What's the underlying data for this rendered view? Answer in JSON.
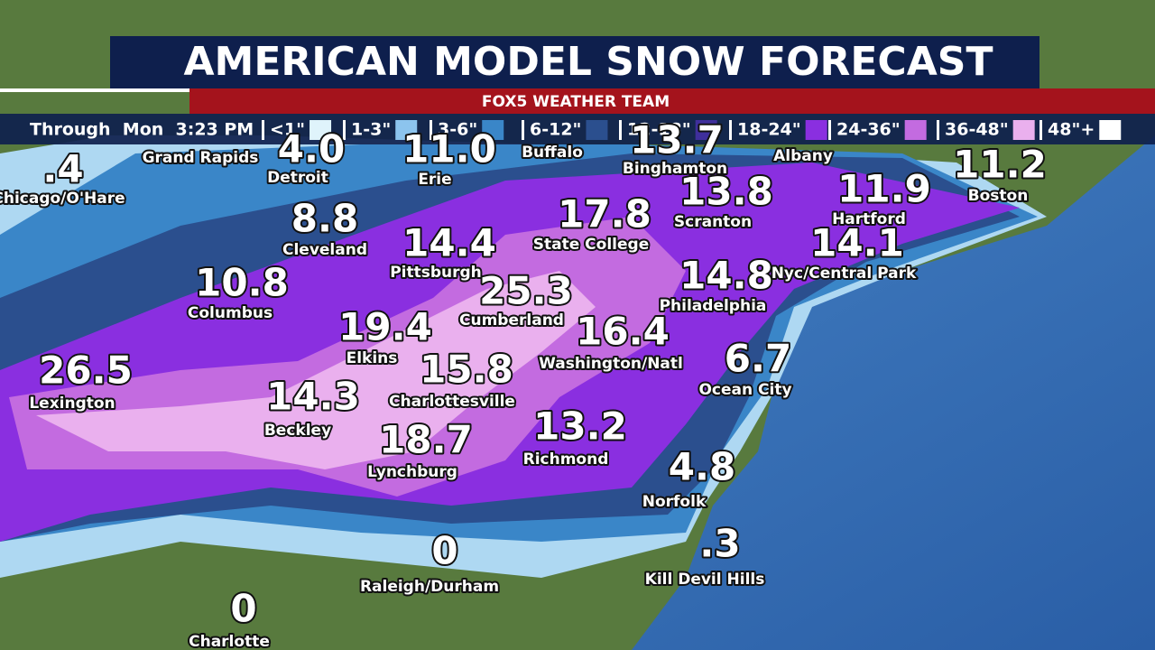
{
  "header": {
    "title": "AMERICAN MODEL SNOW FORECAST",
    "subtitle": "FOX5 WEATHER TEAM"
  },
  "legend": {
    "timestamp": "Through  Mon  3:23 PM",
    "items": [
      {
        "label": "<1\"",
        "color": "#dff3fb"
      },
      {
        "label": "1-3\"",
        "color": "#8cc4ee"
      },
      {
        "label": "3-6\"",
        "color": "#3a86c8"
      },
      {
        "label": "6-12\"",
        "color": "#2b4f8e"
      },
      {
        "label": "12-18\"",
        "color": "#3f2f9c"
      },
      {
        "label": "18-24\"",
        "color": "#8a2fe0"
      },
      {
        "label": "24-36\"",
        "color": "#c36be0"
      },
      {
        "label": "36-48\"",
        "color": "#eab0ee"
      },
      {
        "label": "48\"+",
        "color": "#ffffff"
      }
    ]
  },
  "cities": [
    {
      "value": ".4",
      "name": "Chicago/O'Hare"
    },
    {
      "value": "4.0",
      "name": "Detroit"
    },
    {
      "value": "11.0",
      "name": "Erie"
    },
    {
      "value": "13.7",
      "name": "Binghamton"
    },
    {
      "value": "11.2",
      "name": "Boston"
    },
    {
      "value": "11.9",
      "name": "Hartford"
    },
    {
      "value": "13.8",
      "name": "Scranton"
    },
    {
      "value": "17.8",
      "name": "State College"
    },
    {
      "value": "8.8",
      "name": "Cleveland"
    },
    {
      "value": "14.4",
      "name": "Pittsburgh"
    },
    {
      "value": "14.1",
      "name": "Nyc/Central Park"
    },
    {
      "value": "10.8",
      "name": "Columbus"
    },
    {
      "value": "25.3",
      "name": "Cumberland"
    },
    {
      "value": "14.8",
      "name": "Philadelphia"
    },
    {
      "value": "19.4",
      "name": "Elkins"
    },
    {
      "value": "16.4",
      "name": "Washington/Natl"
    },
    {
      "value": "6.7",
      "name": "Ocean City"
    },
    {
      "value": "26.5",
      "name": "Lexington"
    },
    {
      "value": "15.8",
      "name": "Charlottesville"
    },
    {
      "value": "14.3",
      "name": "Beckley"
    },
    {
      "value": "13.2",
      "name": "Richmond"
    },
    {
      "value": "18.7",
      "name": "Lynchburg"
    },
    {
      "value": "4.8",
      "name": "Norfolk"
    },
    {
      "value": ".3",
      "name": "Kill Devil Hills"
    },
    {
      "value": "0",
      "name": "Raleigh/Durham"
    },
    {
      "value": "0",
      "name": "Charlotte"
    }
  ],
  "places": [
    "Grand Rapids",
    "Buffalo",
    "Albany"
  ]
}
